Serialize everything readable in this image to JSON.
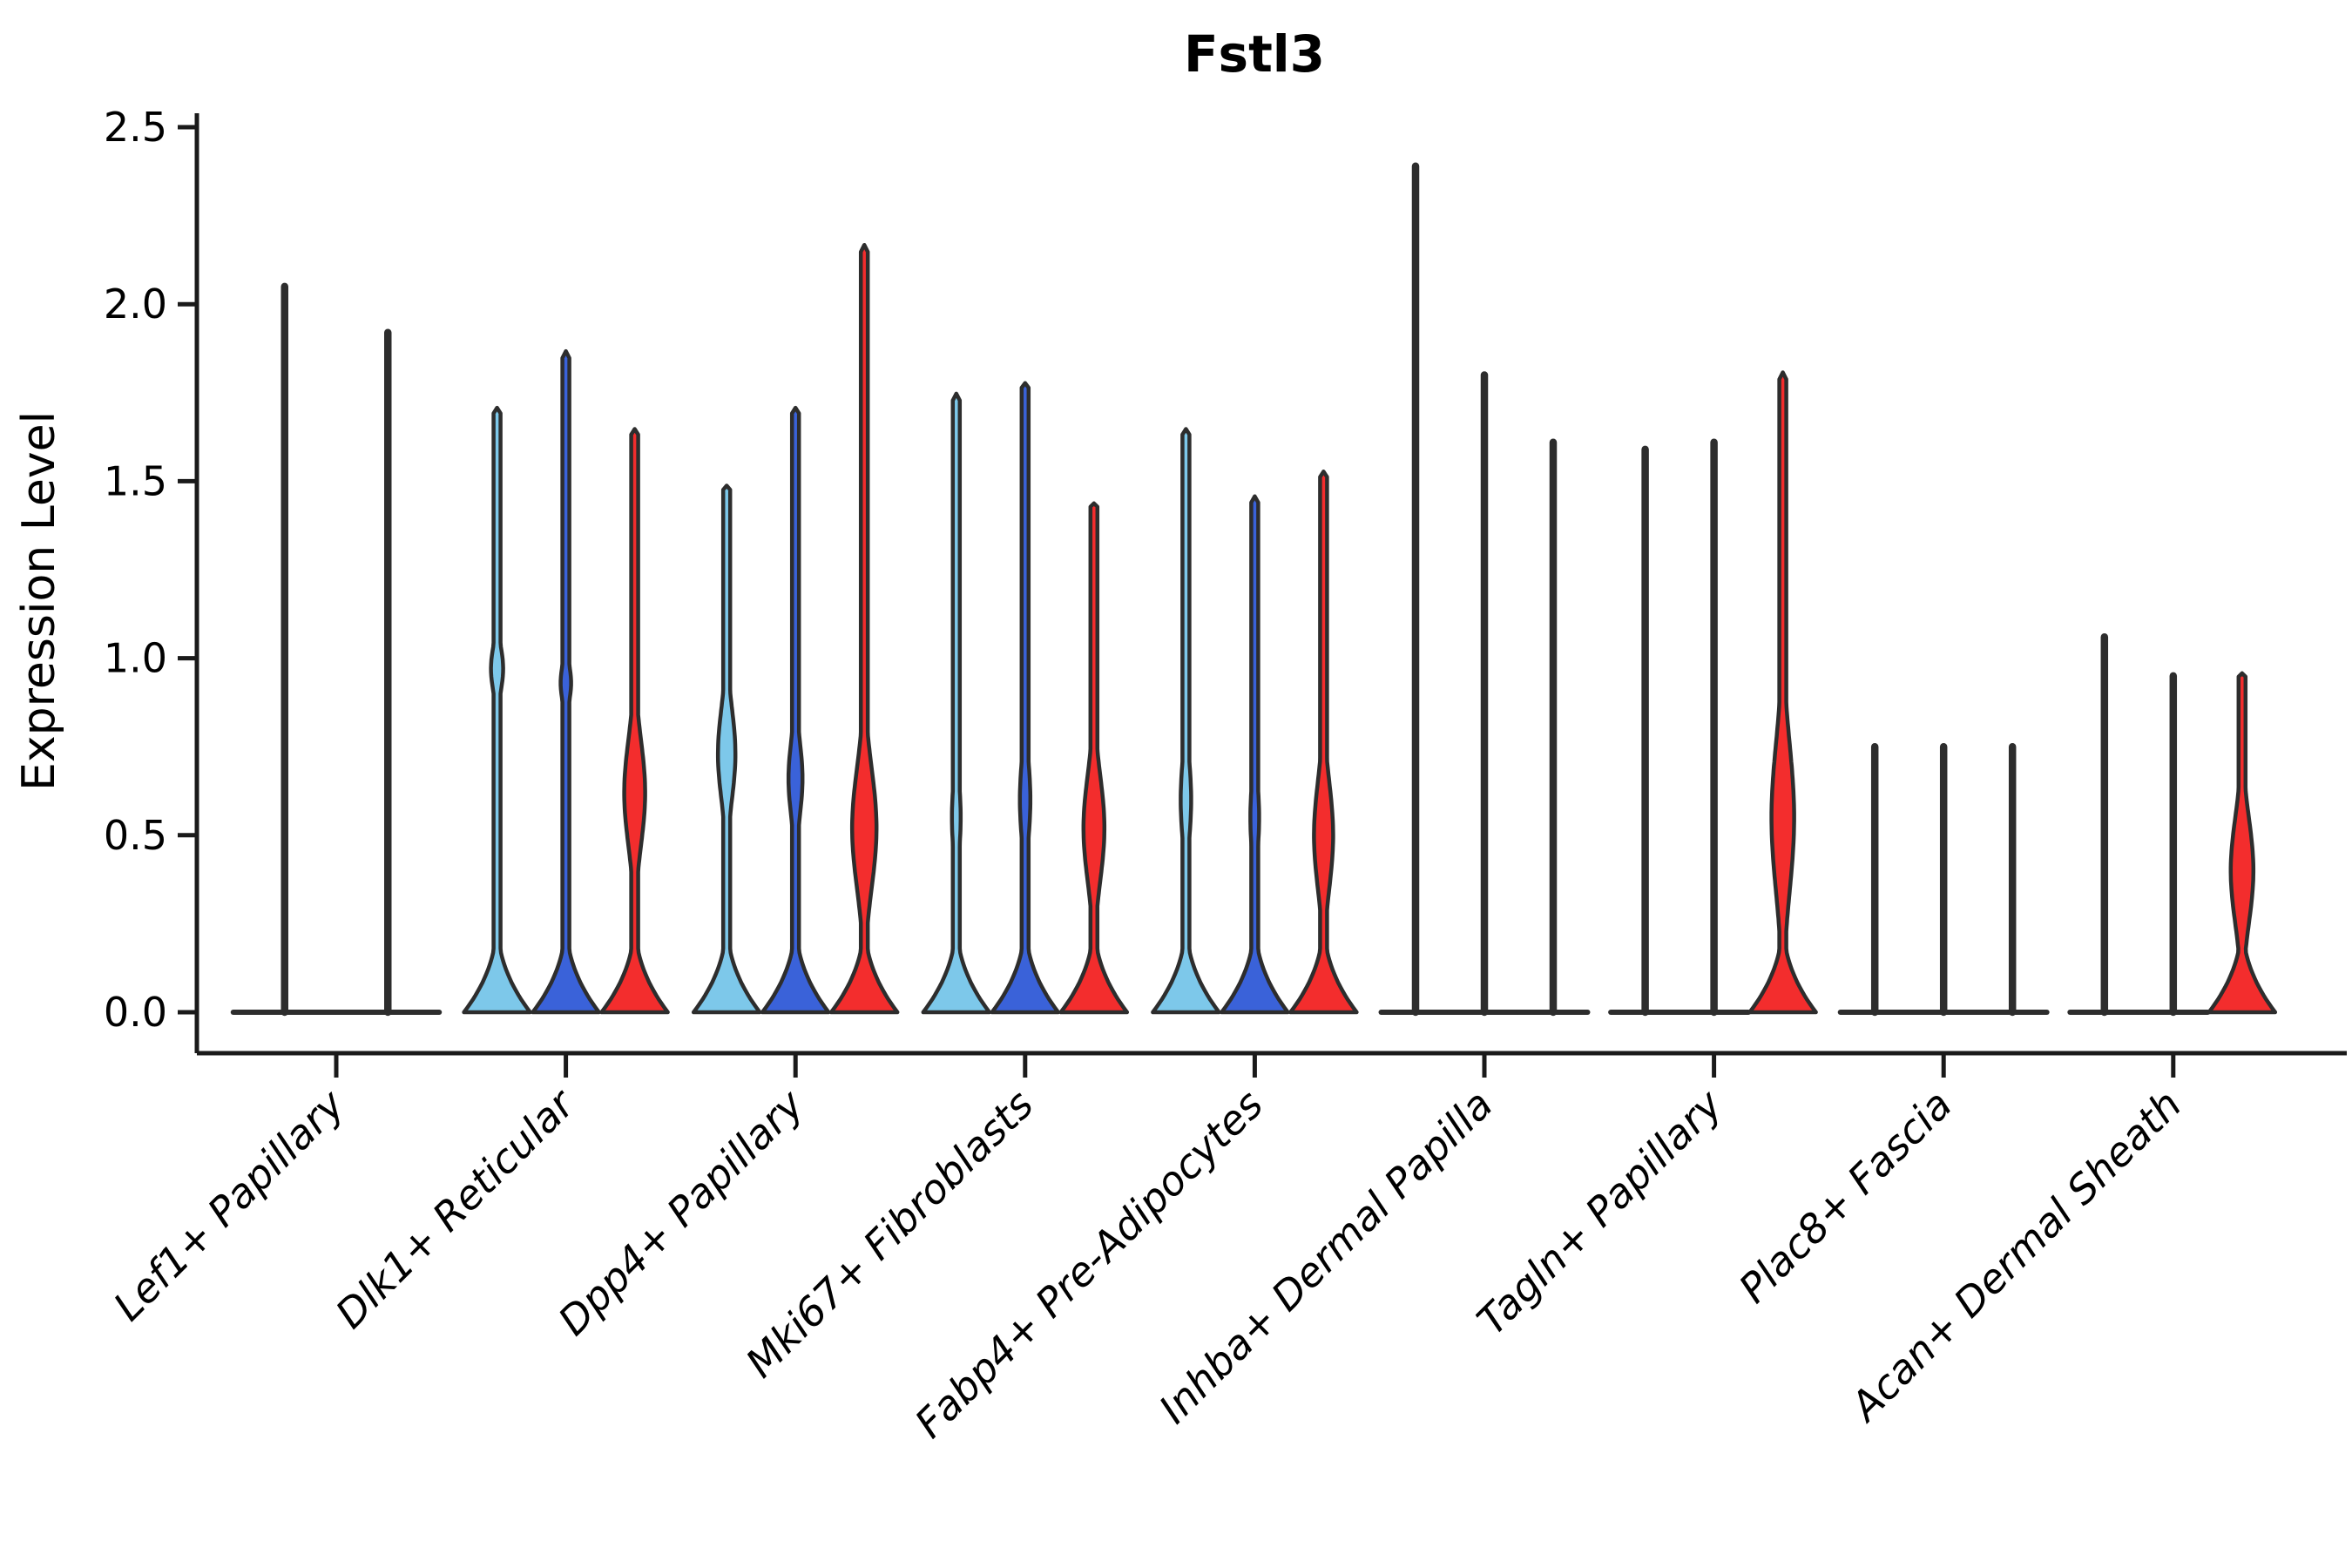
{
  "title": "Fstl3",
  "y_axis": {
    "label": "Expression Level",
    "tick_labels": [
      "0.0",
      "0.5",
      "1.0",
      "1.5",
      "2.0",
      "2.5"
    ],
    "tick_values": [
      0,
      0.5,
      1.0,
      1.5,
      2.0,
      2.5
    ]
  },
  "colors": {
    "light_blue": "#7DC8EA",
    "dark_blue": "#3A62D9",
    "red": "#F32D2D",
    "outline": "#2D2D2D",
    "axis": "#1A1A1A"
  },
  "chart_data": {
    "type": "violin",
    "title": "Fstl3",
    "xlabel": "",
    "ylabel": "Expression Level",
    "ylim": [
      0,
      2.5
    ],
    "grid": false,
    "legend": "none",
    "categories": [
      "Lef1+ Papillary",
      "Dlk1+ Reticular",
      "Dpp4+ Papillary",
      "Mki67+ Fibroblasts",
      "Fabp4+ Pre-Adipocytes",
      "Inhba+ Dermal Papilla",
      "Tagln+ Papillary",
      "Plac8+ Fascia",
      "Acan+ Dermal Sheath"
    ],
    "groups": [
      {
        "label": "Lef1+ Papillary",
        "violins": [
          {
            "style": "flat",
            "color": "none",
            "max_expression": 2.05
          },
          {
            "style": "flat",
            "color": "none",
            "max_expression": 1.92
          }
        ]
      },
      {
        "label": "Dlk1+ Reticular",
        "violins": [
          {
            "style": "bell",
            "color": "light_blue",
            "max_expression": 1.7,
            "lens": {
              "center": 0.97,
              "halfheight": 0.13,
              "halfwidth": 7
            }
          },
          {
            "style": "bell",
            "color": "dark_blue",
            "max_expression": 1.86,
            "lens": {
              "center": 0.93,
              "halfheight": 0.11,
              "halfwidth": 6
            }
          },
          {
            "style": "bell",
            "color": "red",
            "max_expression": 1.64,
            "lens": {
              "center": 0.62,
              "halfheight": 0.3,
              "halfwidth": 12
            }
          }
        ]
      },
      {
        "label": "Dpp4+ Papillary",
        "violins": [
          {
            "style": "bell",
            "color": "light_blue",
            "max_expression": 1.48,
            "lens": {
              "center": 0.73,
              "halfheight": 0.26,
              "halfwidth": 10
            }
          },
          {
            "style": "bell",
            "color": "dark_blue",
            "max_expression": 1.7,
            "lens": {
              "center": 0.66,
              "halfheight": 0.22,
              "halfwidth": 8
            }
          },
          {
            "style": "bell",
            "color": "red",
            "max_expression": 2.16,
            "lens": {
              "center": 0.52,
              "halfheight": 0.34,
              "halfwidth": 14
            }
          }
        ]
      },
      {
        "label": "Mki67+ Fibroblasts",
        "violins": [
          {
            "style": "bell",
            "color": "light_blue",
            "max_expression": 1.74,
            "lens": {
              "center": 0.55,
              "halfheight": 0.22,
              "halfwidth": 5
            }
          },
          {
            "style": "bell",
            "color": "dark_blue",
            "max_expression": 1.77,
            "lens": {
              "center": 0.6,
              "halfheight": 0.24,
              "halfwidth": 6
            }
          },
          {
            "style": "bell",
            "color": "red",
            "max_expression": 1.43,
            "lens": {
              "center": 0.52,
              "halfheight": 0.3,
              "halfwidth": 12
            }
          }
        ]
      },
      {
        "label": "Fabp4+ Pre-Adipocytes",
        "violins": [
          {
            "style": "bell",
            "color": "light_blue",
            "max_expression": 1.64,
            "lens": {
              "center": 0.6,
              "halfheight": 0.24,
              "halfwidth": 6
            }
          },
          {
            "style": "bell",
            "color": "dark_blue",
            "max_expression": 1.45,
            "lens": {
              "center": 0.55,
              "halfheight": 0.22,
              "halfwidth": 5
            }
          },
          {
            "style": "bell",
            "color": "red",
            "max_expression": 1.52,
            "lens": {
              "center": 0.5,
              "halfheight": 0.3,
              "halfwidth": 11
            }
          }
        ]
      },
      {
        "label": "Inhba+ Dermal Papilla",
        "violins": [
          {
            "style": "flat",
            "color": "none",
            "max_expression": 2.39
          },
          {
            "style": "flat",
            "color": "none",
            "max_expression": 1.8
          },
          {
            "style": "flat",
            "color": "none",
            "max_expression": 1.61
          }
        ]
      },
      {
        "label": "Tagln+ Papillary",
        "violins": [
          {
            "style": "flat",
            "color": "none",
            "max_expression": 1.59
          },
          {
            "style": "flat",
            "color": "none",
            "max_expression": 1.61
          },
          {
            "style": "bell",
            "color": "red",
            "max_expression": 1.8,
            "lens": {
              "center": 0.55,
              "halfheight": 0.42,
              "halfwidth": 13
            }
          }
        ]
      },
      {
        "label": "Plac8+ Fascia",
        "violins": [
          {
            "style": "flat",
            "color": "none",
            "max_expression": 0.75
          },
          {
            "style": "flat",
            "color": "none",
            "max_expression": 0.75
          },
          {
            "style": "flat",
            "color": "none",
            "max_expression": 0.75
          }
        ]
      },
      {
        "label": "Acan+ Dermal Sheath",
        "violins": [
          {
            "style": "flat",
            "color": "none",
            "max_expression": 1.06
          },
          {
            "style": "flat",
            "color": "none",
            "max_expression": 0.95
          },
          {
            "style": "bell",
            "color": "red",
            "max_expression": 0.95,
            "lens": {
              "center": 0.4,
              "halfheight": 0.3,
              "halfwidth": 13
            }
          }
        ]
      }
    ]
  }
}
